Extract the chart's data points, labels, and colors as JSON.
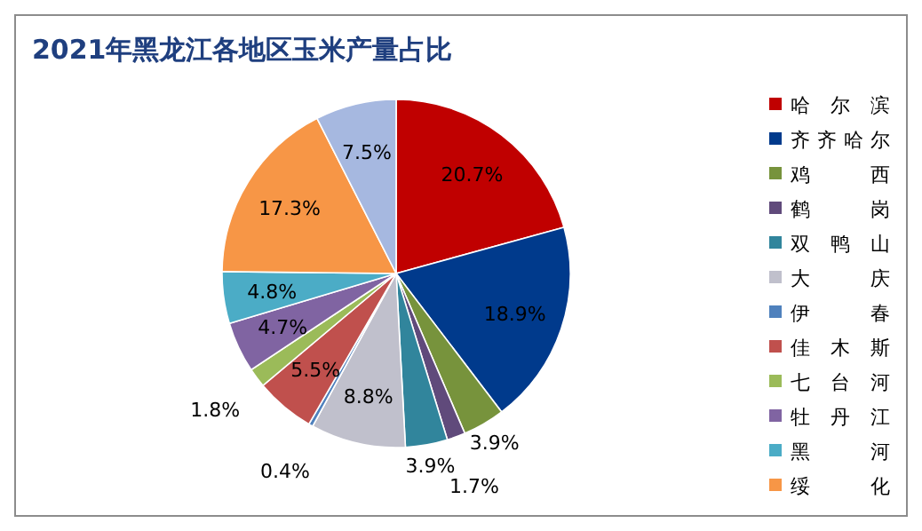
{
  "chart_data": {
    "type": "pie",
    "title": "2021年黑龙江各地区玉米产量占比",
    "categories": [
      "哈尔滨",
      "齐齐哈尔",
      "鸡西",
      "鹤岗",
      "双鸭山",
      "大庆",
      "伊春",
      "佳木斯",
      "七台河",
      "牡丹江",
      "黑河",
      "绥化",
      null
    ],
    "values": [
      20.7,
      18.9,
      3.9,
      1.7,
      3.9,
      8.8,
      0.4,
      5.5,
      1.8,
      4.7,
      4.8,
      17.3,
      7.5
    ],
    "value_labels": [
      "20.7%",
      "18.9%",
      "3.9%",
      "1.7%",
      "3.9%",
      "8.8%",
      "0.4%",
      "5.5%",
      "1.8%",
      "4.7%",
      "4.8%",
      "17.3%",
      "7.5%"
    ],
    "colors": [
      "#c00000",
      "#003a8c",
      "#77933c",
      "#604a7b",
      "#31859c",
      "#c0c0cc",
      "#4f81bd",
      "#c0504d",
      "#9bbb59",
      "#8064a2",
      "#4bacc6",
      "#f79646",
      "#a6b8e0"
    ],
    "legend": "right"
  }
}
